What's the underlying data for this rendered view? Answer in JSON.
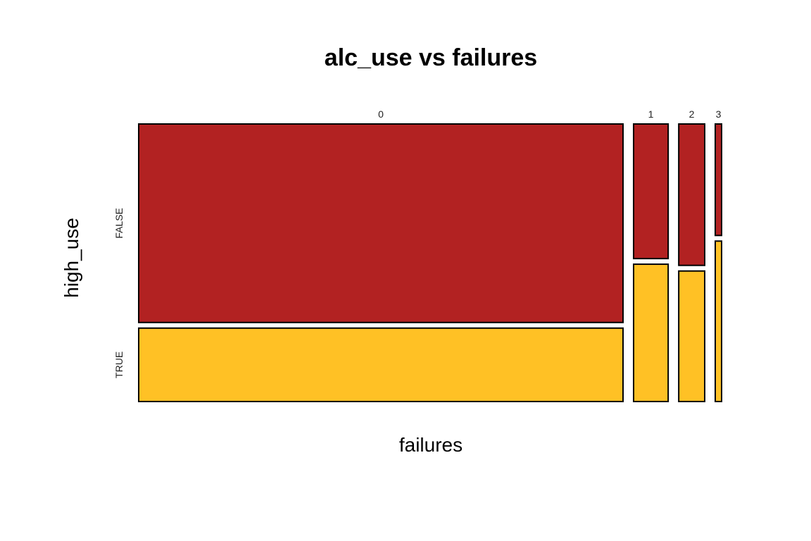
{
  "chart_data": {
    "type": "mosaic",
    "title": "alc_use vs failures",
    "xlabel": "failures",
    "ylabel": "high_use",
    "x_categories": [
      "0",
      "1",
      "2",
      "3"
    ],
    "y_categories": [
      "FALSE",
      "TRUE"
    ],
    "x_proportions": [
      0.84,
      0.06,
      0.045,
      0.011
    ],
    "false_fraction_within": [
      0.73,
      0.495,
      0.52,
      0.41
    ],
    "colors": {
      "FALSE": "#B22222",
      "TRUE": "#FFC125"
    },
    "grid": false,
    "legend": "none"
  }
}
